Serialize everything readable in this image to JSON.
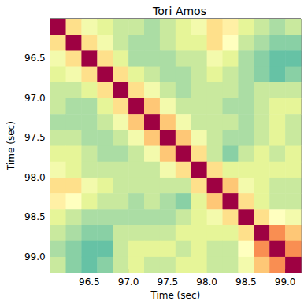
{
  "chart_data": {
    "type": "heatmap",
    "title": "Tori Amos",
    "x_label": "Time (sec)",
    "y_label": "Time (sec)",
    "x": [
      96.1,
      96.3,
      96.5,
      96.7,
      96.9,
      97.1,
      97.3,
      97.5,
      97.7,
      97.9,
      98.1,
      98.3,
      98.5,
      98.7,
      98.9,
      99.1
    ],
    "y": [
      96.1,
      96.3,
      96.5,
      96.7,
      96.9,
      97.1,
      97.3,
      97.5,
      97.7,
      97.9,
      98.1,
      98.3,
      98.5,
      98.7,
      98.9,
      99.1
    ],
    "z": [
      [
        1,
        0.6,
        0.45,
        0.4,
        0.35,
        0.35,
        0.3,
        0.35,
        0.4,
        0.45,
        0.6,
        0.55,
        0.4,
        0.35,
        0.3,
        0.35
      ],
      [
        0.6,
        1,
        0.6,
        0.45,
        0.35,
        0.3,
        0.3,
        0.35,
        0.4,
        0.4,
        0.6,
        0.5,
        0.35,
        0.3,
        0.25,
        0.25
      ],
      [
        0.45,
        0.6,
        1,
        0.6,
        0.4,
        0.3,
        0.3,
        0.3,
        0.35,
        0.35,
        0.45,
        0.4,
        0.3,
        0.25,
        0.2,
        0.2
      ],
      [
        0.4,
        0.45,
        0.6,
        1,
        0.6,
        0.4,
        0.35,
        0.3,
        0.3,
        0.35,
        0.4,
        0.35,
        0.3,
        0.25,
        0.2,
        0.25
      ],
      [
        0.35,
        0.35,
        0.4,
        0.6,
        1,
        0.6,
        0.45,
        0.35,
        0.3,
        0.35,
        0.35,
        0.35,
        0.3,
        0.35,
        0.35,
        0.35
      ],
      [
        0.35,
        0.3,
        0.3,
        0.4,
        0.6,
        1,
        0.65,
        0.45,
        0.35,
        0.35,
        0.35,
        0.3,
        0.3,
        0.35,
        0.4,
        0.4
      ],
      [
        0.3,
        0.3,
        0.3,
        0.35,
        0.45,
        0.65,
        1,
        0.65,
        0.45,
        0.35,
        0.35,
        0.35,
        0.3,
        0.35,
        0.4,
        0.35
      ],
      [
        0.35,
        0.35,
        0.3,
        0.3,
        0.35,
        0.45,
        0.65,
        1,
        0.65,
        0.45,
        0.35,
        0.3,
        0.3,
        0.35,
        0.4,
        0.35
      ],
      [
        0.4,
        0.4,
        0.35,
        0.3,
        0.3,
        0.35,
        0.45,
        0.65,
        1,
        0.6,
        0.35,
        0.25,
        0.35,
        0.4,
        0.35,
        0.4
      ],
      [
        0.45,
        0.4,
        0.35,
        0.35,
        0.35,
        0.35,
        0.35,
        0.45,
        0.6,
        1,
        0.6,
        0.4,
        0.4,
        0.4,
        0.4,
        0.4
      ],
      [
        0.6,
        0.6,
        0.45,
        0.4,
        0.35,
        0.35,
        0.35,
        0.35,
        0.35,
        0.6,
        1,
        0.65,
        0.45,
        0.4,
        0.35,
        0.35
      ],
      [
        0.55,
        0.5,
        0.4,
        0.35,
        0.35,
        0.3,
        0.35,
        0.3,
        0.25,
        0.4,
        0.65,
        1,
        0.6,
        0.4,
        0.35,
        0.35
      ],
      [
        0.4,
        0.35,
        0.3,
        0.3,
        0.3,
        0.3,
        0.3,
        0.3,
        0.35,
        0.4,
        0.45,
        0.6,
        1,
        0.6,
        0.5,
        0.45
      ],
      [
        0.35,
        0.3,
        0.25,
        0.25,
        0.35,
        0.35,
        0.35,
        0.35,
        0.4,
        0.4,
        0.4,
        0.4,
        0.6,
        1,
        0.75,
        0.65
      ],
      [
        0.3,
        0.25,
        0.2,
        0.2,
        0.35,
        0.4,
        0.4,
        0.4,
        0.35,
        0.4,
        0.35,
        0.35,
        0.5,
        0.75,
        1,
        0.75
      ],
      [
        0.35,
        0.25,
        0.2,
        0.25,
        0.35,
        0.4,
        0.35,
        0.35,
        0.4,
        0.4,
        0.35,
        0.35,
        0.45,
        0.65,
        0.75,
        1
      ]
    ],
    "zlim": [
      0,
      1
    ],
    "xlim": [
      96.0,
      99.2
    ],
    "ylim": [
      96.0,
      99.2
    ],
    "xticks": [
      96.5,
      {
        "value": 97,
        "label": "97.0"
      },
      97.5,
      {
        "value": 98,
        "label": "98.0"
      },
      98.5,
      {
        "value": 99,
        "label": "99.0"
      }
    ],
    "yticks": [
      96.5,
      {
        "value": 97,
        "label": "97.0"
      },
      97.5,
      {
        "value": 98,
        "label": "98.0"
      },
      98.5,
      {
        "value": 99,
        "label": "99.0"
      }
    ],
    "grid": false
  }
}
